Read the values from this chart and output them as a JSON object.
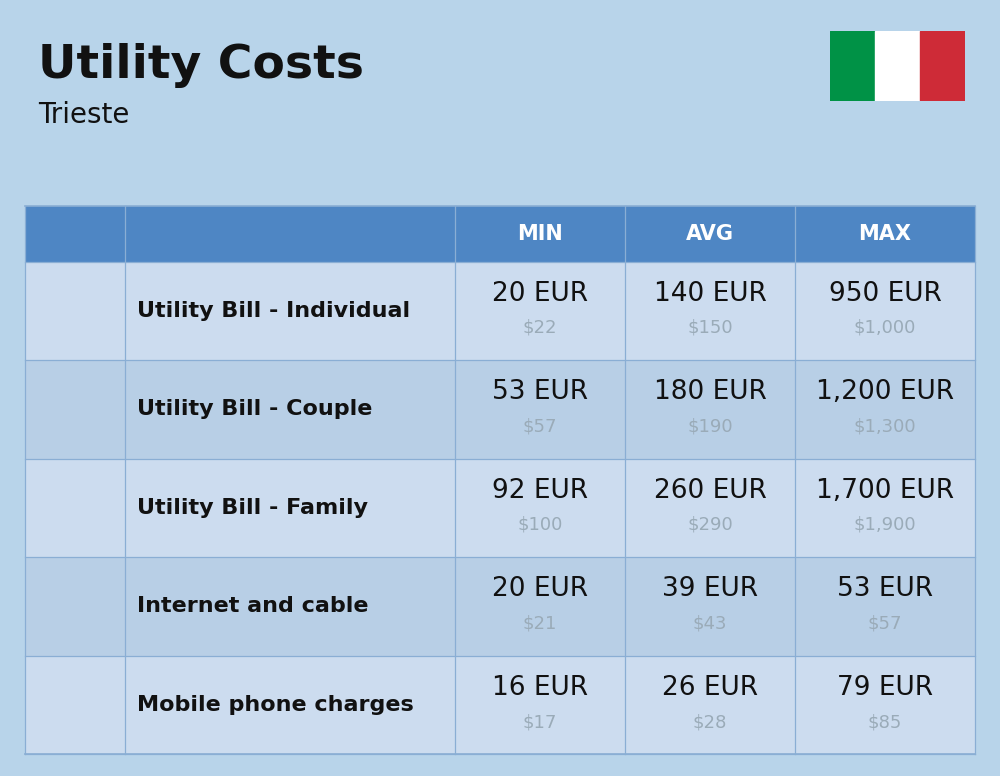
{
  "title": "Utility Costs",
  "subtitle": "Trieste",
  "background_color": "#b8d4ea",
  "header_bg_color": "#4e86c4",
  "header_text_color": "#ffffff",
  "row_bg_colors": [
    "#ccdcef",
    "#b8cfe6"
  ],
  "col_border_color": "#8aaed4",
  "columns": [
    "MIN",
    "AVG",
    "MAX"
  ],
  "rows": [
    {
      "label": "Utility Bill - Individual",
      "min_eur": "20 EUR",
      "min_usd": "$22",
      "avg_eur": "140 EUR",
      "avg_usd": "$150",
      "max_eur": "950 EUR",
      "max_usd": "$1,000"
    },
    {
      "label": "Utility Bill - Couple",
      "min_eur": "53 EUR",
      "min_usd": "$57",
      "avg_eur": "180 EUR",
      "avg_usd": "$190",
      "max_eur": "1,200 EUR",
      "max_usd": "$1,300"
    },
    {
      "label": "Utility Bill - Family",
      "min_eur": "92 EUR",
      "min_usd": "$100",
      "avg_eur": "260 EUR",
      "avg_usd": "$290",
      "max_eur": "1,700 EUR",
      "max_usd": "$1,900"
    },
    {
      "label": "Internet and cable",
      "min_eur": "20 EUR",
      "min_usd": "$21",
      "avg_eur": "39 EUR",
      "avg_usd": "$43",
      "max_eur": "53 EUR",
      "max_usd": "$57"
    },
    {
      "label": "Mobile phone charges",
      "min_eur": "16 EUR",
      "min_usd": "$17",
      "avg_eur": "26 EUR",
      "avg_usd": "$28",
      "max_eur": "79 EUR",
      "max_usd": "$85"
    }
  ],
  "title_fontsize": 34,
  "subtitle_fontsize": 20,
  "header_fontsize": 15,
  "cell_eur_fontsize": 19,
  "cell_usd_fontsize": 13,
  "label_fontsize": 16,
  "flag_colors": [
    "#009246",
    "#ffffff",
    "#ce2b37"
  ],
  "usd_color": "#9aabb8",
  "label_color": "#111111",
  "eur_color": "#111111"
}
